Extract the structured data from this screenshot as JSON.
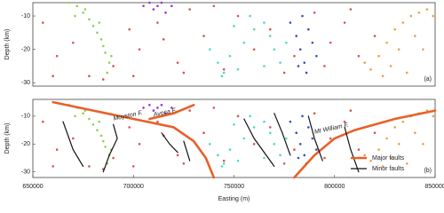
{
  "chart_data": [
    {
      "type": "scatter",
      "panel_label": "(a)",
      "ylabel": "Depth (km)",
      "xlim": [
        650000,
        850000
      ],
      "ylim": [
        -31,
        -6
      ],
      "yticks": [
        -10,
        -20,
        -30
      ],
      "series": [
        {
          "name": "red",
          "color": "#d9534f",
          "x": [
            655000,
            662000,
            670000,
            678000,
            690000,
            698000,
            703000,
            712000,
            722000,
            728000,
            735000,
            745000,
            752000,
            760000,
            768000,
            775000,
            790000,
            798000,
            805000,
            812000,
            820000,
            700000,
            715000,
            740000,
            780000,
            660000,
            685000,
            725000,
            795000,
            808000
          ],
          "y": [
            -12,
            -22,
            -18,
            -28,
            -25,
            -14,
            -20,
            -12,
            -24,
            -8,
            -16,
            -26,
            -10,
            -20,
            -14,
            -27,
            -9,
            -18,
            -12,
            -22,
            -16,
            -28,
            -17,
            -7,
            -22,
            -28,
            -29,
            -27,
            -25,
            -8
          ]
        },
        {
          "name": "green",
          "color": "#8fd14f",
          "x": [
            668000,
            672000,
            675000,
            678000,
            680000,
            682000,
            684000,
            685000,
            686000,
            688000,
            687000,
            676000,
            683000,
            689000,
            671000
          ],
          "y": [
            -6,
            -7,
            -9,
            -11,
            -13,
            -15,
            -17,
            -19,
            -21,
            -24,
            -27,
            -8,
            -12,
            -22,
            -10
          ]
        },
        {
          "name": "purple",
          "color": "#9b30d0",
          "x": [
            705000,
            708000,
            710000,
            712000,
            714000,
            716000,
            719000
          ],
          "y": [
            -7,
            -6,
            -8,
            -7,
            -6,
            -9,
            -7
          ]
        },
        {
          "name": "cyan",
          "color": "#4fd9c8",
          "x": [
            738000,
            742000,
            745000,
            748000,
            752000,
            755000,
            760000,
            765000,
            768000,
            770000,
            773000,
            765000,
            758000,
            750000,
            744000,
            776000
          ],
          "y": [
            -20,
            -24,
            -27,
            -22,
            -26,
            -18,
            -14,
            -12,
            -16,
            -20,
            -24,
            -25,
            -10,
            -13,
            -28,
            -18
          ]
        },
        {
          "name": "blue",
          "color": "#3a4fc0",
          "x": [
            778000,
            781000,
            783000,
            785000,
            787000,
            789000,
            791000,
            784000,
            786000,
            782000
          ],
          "y": [
            -12,
            -16,
            -20,
            -24,
            -14,
            -18,
            -22,
            -10,
            -27,
            -25
          ]
        },
        {
          "name": "orange",
          "color": "#f0a040",
          "x": [
            815000,
            818000,
            822000,
            826000,
            830000,
            834000,
            838000,
            842000,
            846000,
            849000,
            828000,
            836000,
            844000,
            832000,
            840000,
            824000
          ],
          "y": [
            -24,
            -26,
            -22,
            -18,
            -14,
            -12,
            -10,
            -9,
            -8,
            -10,
            -25,
            -27,
            -20,
            -20,
            -16,
            -28
          ]
        }
      ]
    },
    {
      "type": "scatter",
      "panel_label": "(b)",
      "ylabel": "Depth (km)",
      "xlabel": "Easting (m)",
      "xlim": [
        650000,
        850000
      ],
      "ylim": [
        -32,
        -4
      ],
      "yticks": [
        -10,
        -20,
        -30
      ],
      "xticks": [
        650000,
        700000,
        750000,
        800000,
        850000
      ],
      "legend": "lower right",
      "annotations": [
        "Moyston F.",
        "Avoca F.",
        "Mt William F."
      ],
      "series": [
        {
          "name": "red",
          "color": "#d9534f",
          "x": [
            655000,
            662000,
            670000,
            678000,
            690000,
            698000,
            703000,
            712000,
            722000,
            728000,
            735000,
            745000,
            752000,
            760000,
            768000,
            775000,
            790000,
            798000,
            805000,
            812000,
            820000,
            700000,
            715000,
            740000,
            780000,
            660000,
            685000,
            725000,
            795000,
            808000
          ],
          "y": [
            -12,
            -22,
            -18,
            -28,
            -25,
            -14,
            -20,
            -12,
            -24,
            -8,
            -16,
            -26,
            -10,
            -20,
            -14,
            -27,
            -9,
            -18,
            -12,
            -22,
            -16,
            -28,
            -17,
            -7,
            -22,
            -28,
            -29,
            -27,
            -25,
            -8
          ]
        },
        {
          "name": "green",
          "color": "#8fd14f",
          "x": [
            668000,
            672000,
            675000,
            678000,
            680000,
            682000,
            684000,
            685000,
            686000,
            688000,
            687000,
            676000,
            683000,
            689000,
            671000
          ],
          "y": [
            -6,
            -7,
            -9,
            -11,
            -13,
            -15,
            -17,
            -19,
            -21,
            -24,
            -27,
            -8,
            -12,
            -22,
            -10
          ]
        },
        {
          "name": "purple",
          "color": "#9b30d0",
          "x": [
            705000,
            708000,
            710000,
            712000,
            714000,
            716000,
            719000
          ],
          "y": [
            -7,
            -6,
            -8,
            -7,
            -6,
            -9,
            -7
          ]
        },
        {
          "name": "cyan",
          "color": "#4fd9c8",
          "x": [
            738000,
            742000,
            745000,
            748000,
            752000,
            755000,
            760000,
            765000,
            768000,
            770000,
            773000,
            765000,
            758000,
            750000,
            744000,
            776000
          ],
          "y": [
            -20,
            -24,
            -27,
            -22,
            -26,
            -18,
            -14,
            -12,
            -16,
            -20,
            -24,
            -25,
            -10,
            -13,
            -28,
            -18
          ]
        },
        {
          "name": "blue",
          "color": "#3a4fc0",
          "x": [
            778000,
            781000,
            783000,
            785000,
            787000,
            789000,
            791000,
            784000,
            786000,
            782000
          ],
          "y": [
            -12,
            -16,
            -20,
            -24,
            -14,
            -18,
            -22,
            -10,
            -27,
            -25
          ]
        },
        {
          "name": "orange",
          "color": "#f0a040",
          "x": [
            815000,
            818000,
            822000,
            826000,
            830000,
            834000,
            838000,
            842000,
            846000,
            849000,
            828000,
            836000,
            844000,
            832000,
            840000,
            824000
          ],
          "y": [
            -24,
            -26,
            -22,
            -18,
            -14,
            -12,
            -10,
            -9,
            -8,
            -10,
            -25,
            -27,
            -20,
            -20,
            -16,
            -28
          ]
        }
      ],
      "lines": [
        {
          "name": "Major faults",
          "color": "#e8602a",
          "x": [
            660000,
            680000,
            700000,
            720000,
            730000,
            736000,
            740000,
            null,
            708000,
            720000,
            730000,
            null,
            780000,
            790000,
            800000,
            810000,
            830000,
            850000
          ],
          "y": [
            -5,
            -8,
            -11,
            -14,
            -19,
            -25,
            -32,
            null,
            -11,
            -9,
            -6,
            null,
            -32,
            -24,
            -18,
            -15,
            -11,
            -8
          ]
        },
        {
          "name": "Minor faults",
          "color": "#111111",
          "x": [
            665000,
            670000,
            675000,
            null,
            690000,
            692000,
            688000,
            685000,
            null,
            714000,
            718000,
            722000,
            null,
            725000,
            728000,
            null,
            755000,
            760000,
            770000,
            null,
            770000,
            774000,
            778000,
            null,
            787000,
            790000,
            794000,
            null,
            805000,
            808000,
            812000
          ],
          "y": [
            -12,
            -22,
            -28,
            null,
            -13,
            -18,
            -24,
            -30,
            null,
            -16,
            -20,
            -23,
            null,
            -19,
            -26,
            null,
            -11,
            -18,
            -28,
            null,
            -9,
            -16,
            -24,
            null,
            -10,
            -18,
            -26,
            null,
            -14,
            -22,
            -30
          ]
        }
      ]
    }
  ]
}
